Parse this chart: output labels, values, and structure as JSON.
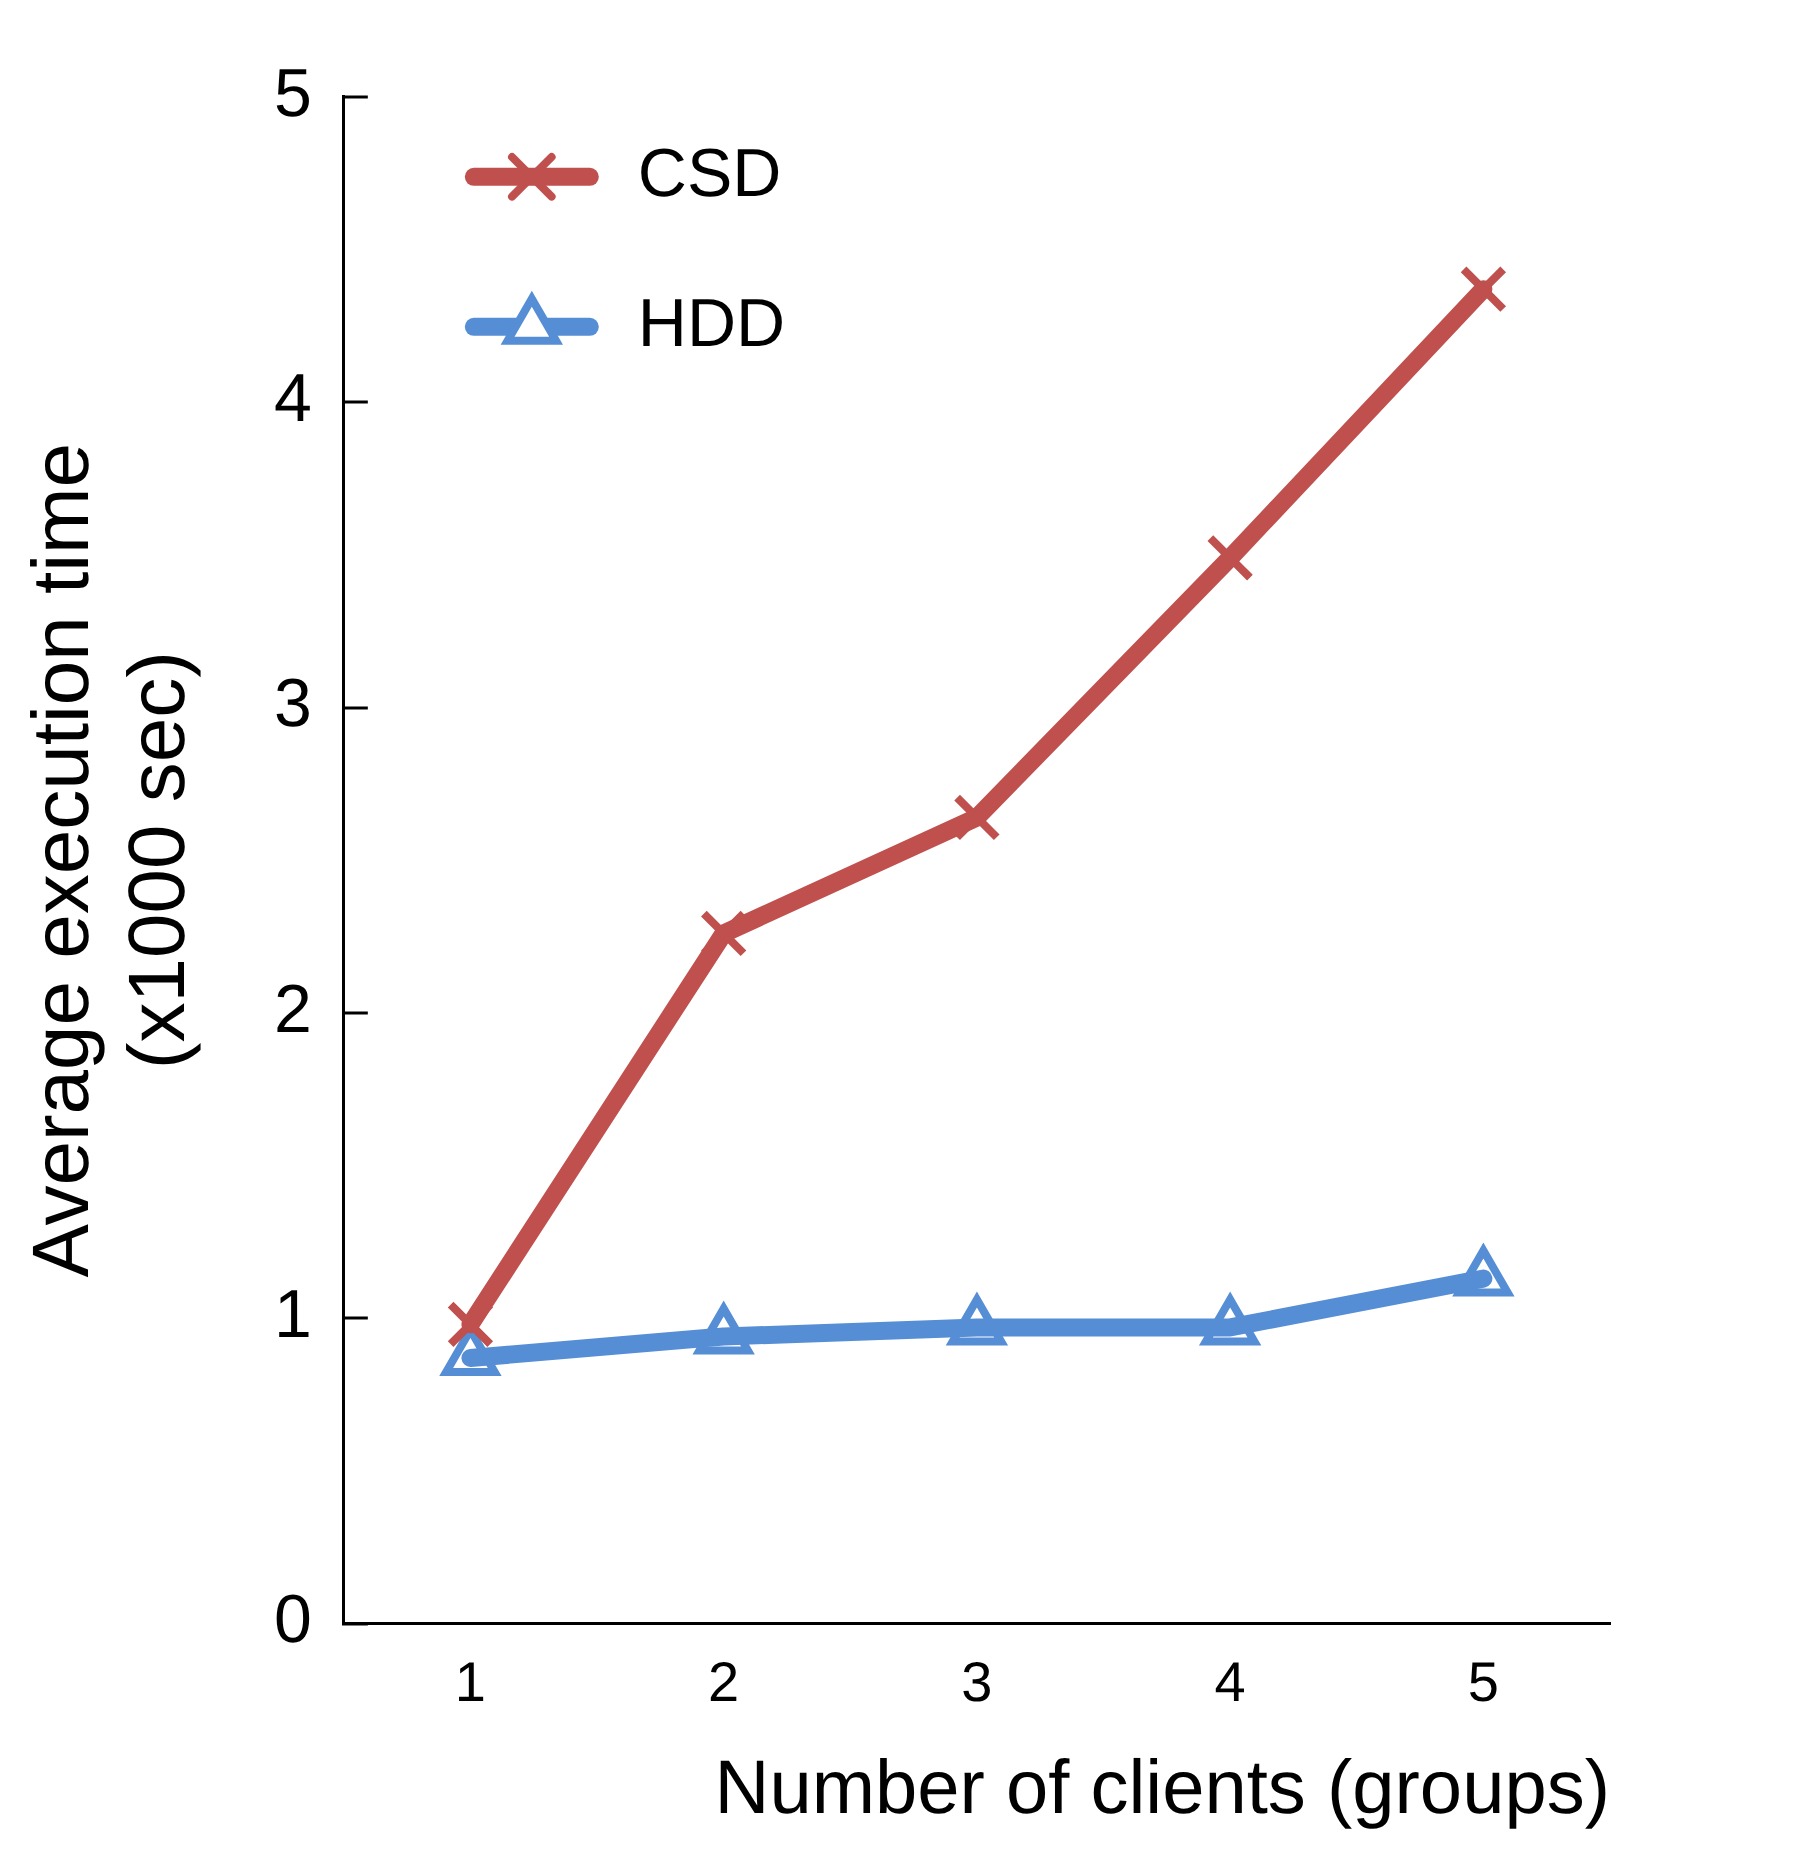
{
  "chart_data": {
    "type": "line",
    "xlabel": "Number of clients (groups)",
    "ylabel": "Average execution time\n(x1000 sec)",
    "categories": [
      "1",
      "2",
      "3",
      "4",
      "5"
    ],
    "series": [
      {
        "name": "CSD",
        "color": "#c0504d",
        "marker": "cross",
        "values": [
          0.98,
          2.26,
          2.64,
          3.49,
          4.37
        ]
      },
      {
        "name": "HDD",
        "color": "#558ed5",
        "marker": "triangle",
        "values": [
          0.87,
          0.94,
          0.97,
          0.97,
          1.13
        ]
      }
    ],
    "ylim": [
      0,
      5
    ],
    "yticks": [
      0,
      1,
      2,
      3,
      4,
      5
    ],
    "grid": false,
    "legend": "top left",
    "line_style": "solid"
  }
}
